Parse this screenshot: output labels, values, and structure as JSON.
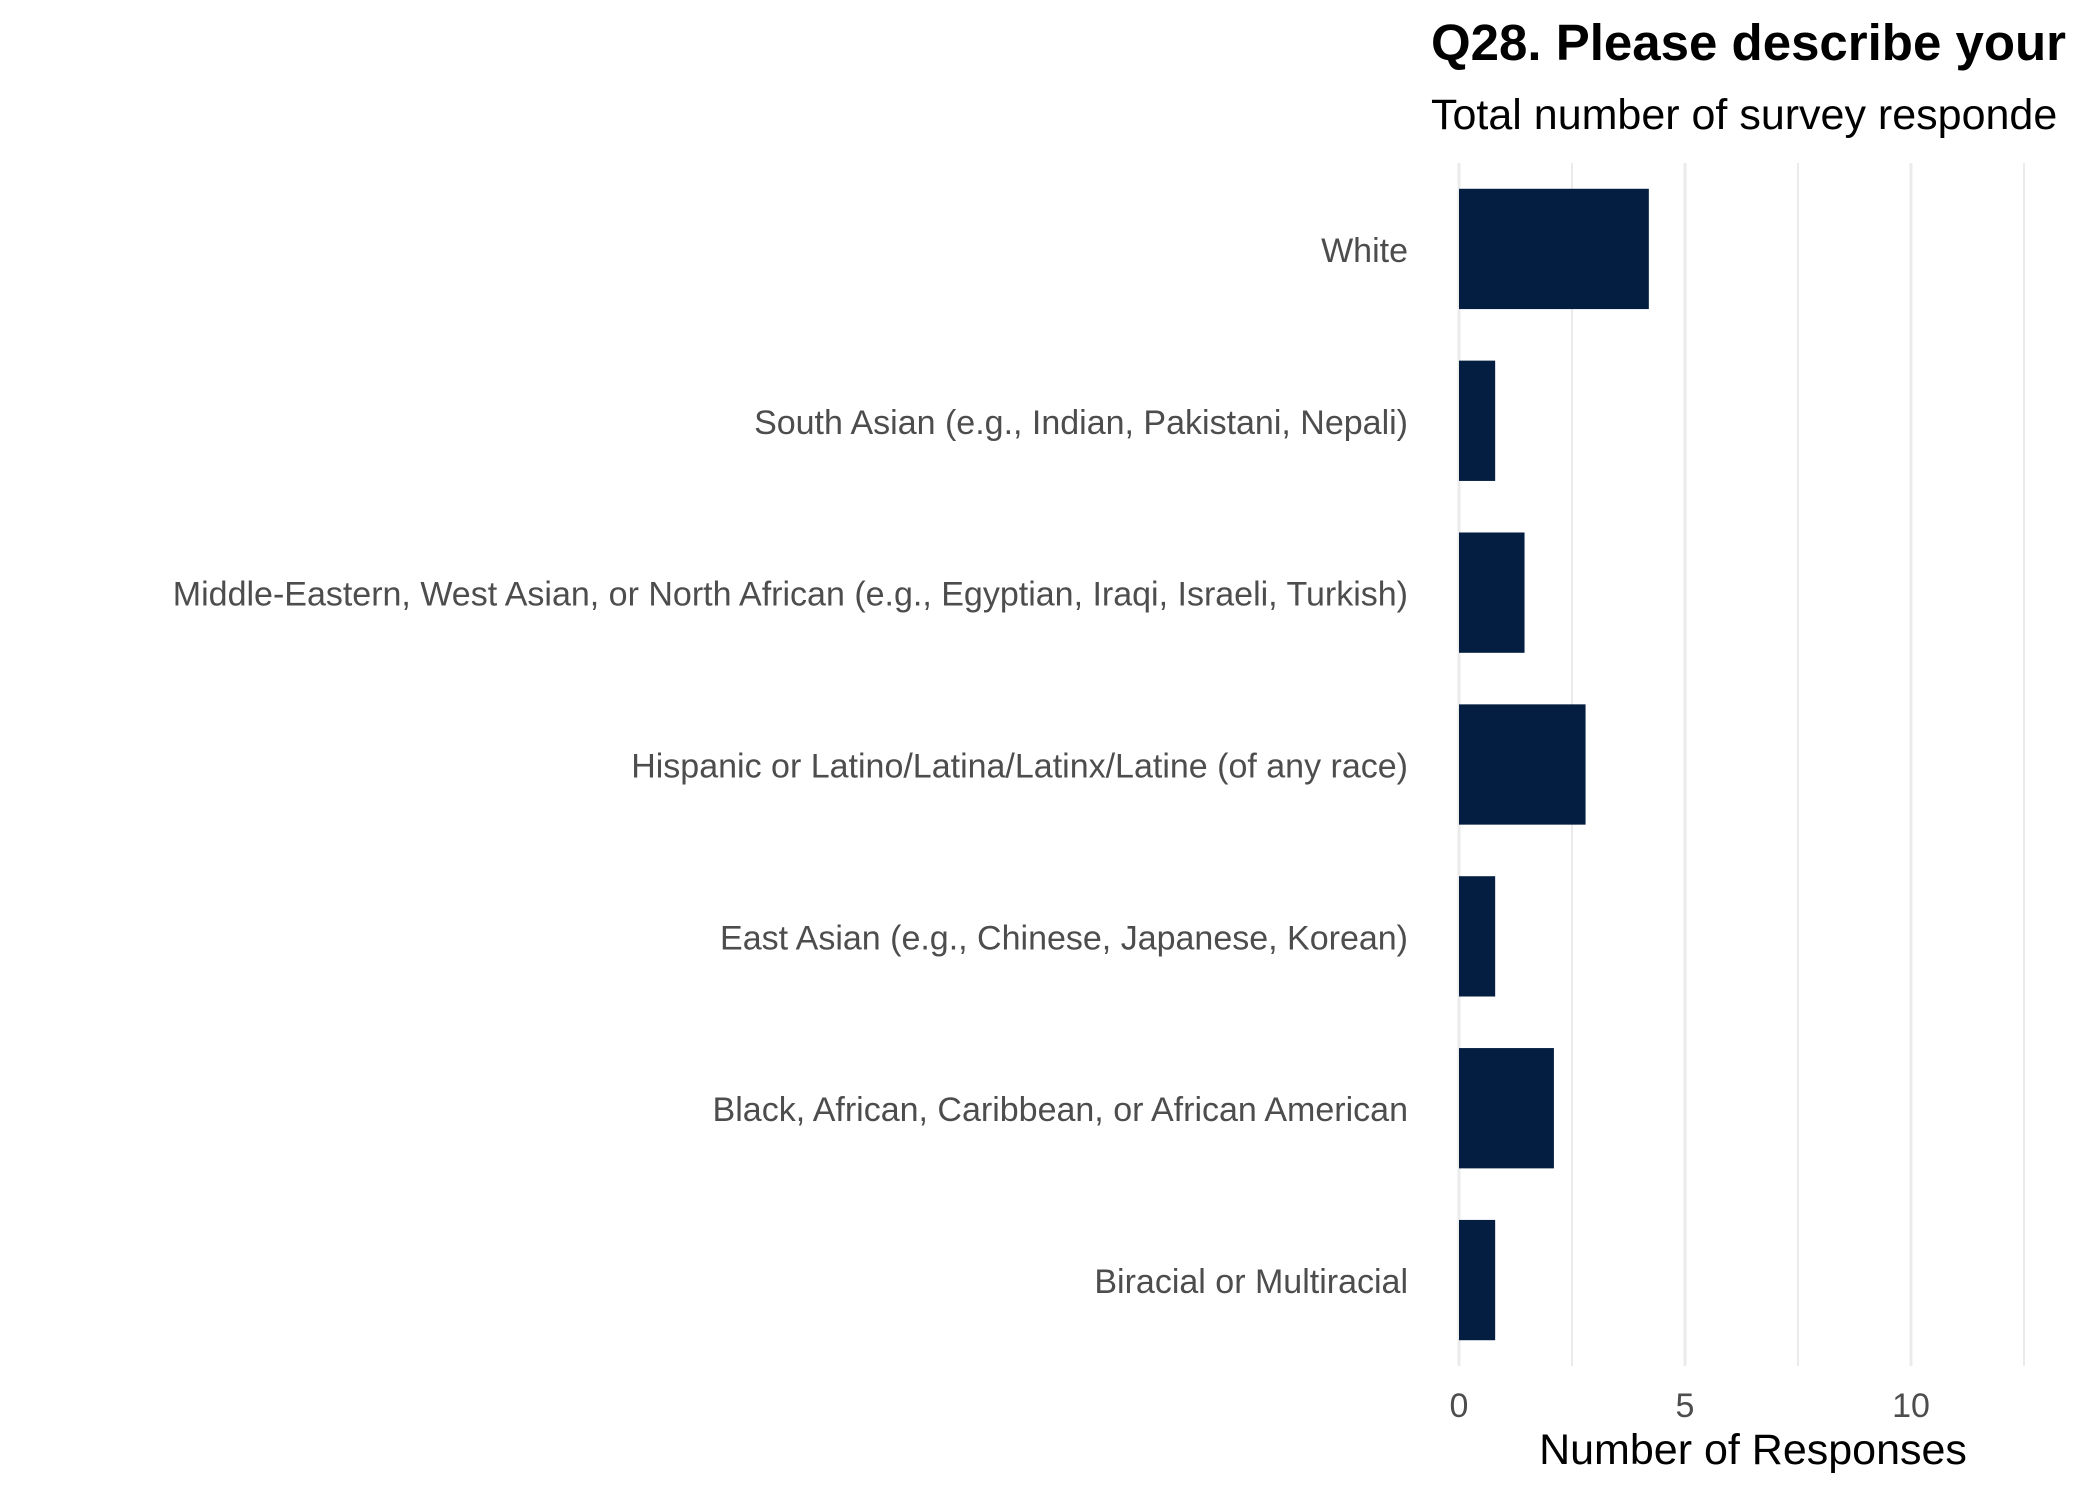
{
  "chart_data": {
    "type": "bar",
    "orientation": "horizontal",
    "title": "Q28. Please describe your",
    "subtitle": "Total number of survey responde",
    "xlabel": "Number of Responses",
    "ylabel": "",
    "categories": [
      "White",
      "South Asian (e.g., Indian, Pakistani, Nepali)",
      "Middle-Eastern, West Asian, or North African (e.g., Egyptian, Iraqi, Israeli, Turkish)",
      "Hispanic or Latino/Latina/Latinx/Latine (of any race)",
      "East Asian (e.g., Chinese, Japanese, Korean)",
      "Black, African, Caribbean, or African American",
      "Biracial or Multiracial"
    ],
    "values": [
      4.2,
      0.8,
      1.45,
      2.8,
      0.8,
      2.1,
      0.8
    ],
    "xlim": [
      0,
      12.5
    ],
    "x_ticks": [
      0,
      5,
      10
    ],
    "minor_gridlines": [
      2.5,
      7.5,
      12.5
    ],
    "grid": true,
    "legend": "none",
    "colors": {
      "bar": "#041e41",
      "grid": "#ebebeb",
      "label": "#4d4d4d",
      "title": "#000000"
    }
  }
}
